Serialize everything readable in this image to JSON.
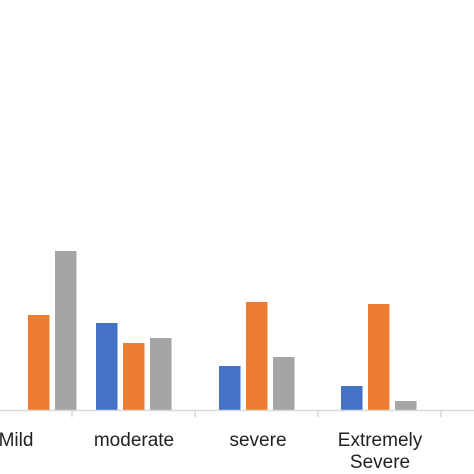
{
  "chart_data": {
    "type": "bar",
    "categories": [
      "Mild",
      "moderate",
      "severe",
      "Extremely Severe"
    ],
    "category_lines": [
      [
        "Mild"
      ],
      [
        "moderate"
      ],
      [
        "severe"
      ],
      [
        "Extremely",
        "Severe"
      ]
    ],
    "series": [
      {
        "color": "#4472C4",
        "values": [
          null,
          87,
          44,
          24
        ]
      },
      {
        "color": "#ED7D31",
        "values": [
          95,
          67,
          108,
          106
        ]
      },
      {
        "color": "#A5A5A5",
        "values": [
          159,
          72,
          53,
          9
        ]
      }
    ],
    "ylim": [
      0,
      160
    ],
    "grid": false,
    "legend": "none"
  }
}
